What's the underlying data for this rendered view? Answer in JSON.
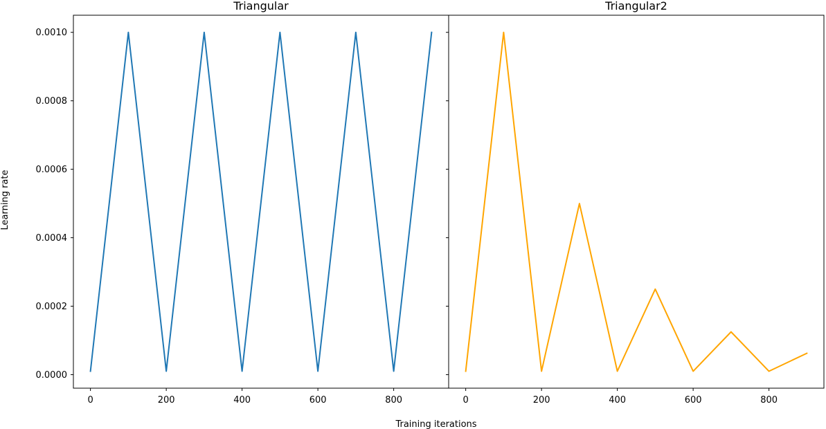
{
  "figure": {
    "xlabel": "Training iterations",
    "ylabel": "Learning rate"
  },
  "chart_data": [
    {
      "type": "line",
      "title": "Triangular",
      "x": [
        0,
        100,
        200,
        300,
        400,
        500,
        600,
        700,
        800,
        900
      ],
      "series": [
        {
          "color": "#1f77b4",
          "values": [
            1e-05,
            0.001,
            1e-05,
            0.001,
            1e-05,
            0.001,
            1e-05,
            0.001,
            1e-05,
            0.001
          ]
        }
      ],
      "xticks": [
        "0",
        "200",
        "400",
        "600",
        "800"
      ],
      "yticks": [
        "0.0000",
        "0.0002",
        "0.0004",
        "0.0006",
        "0.0008",
        "0.0010"
      ],
      "xlim": [
        -45,
        945
      ],
      "ylim": [
        -3.95e-05,
        0.00105
      ],
      "grid": false
    },
    {
      "type": "line",
      "title": "Triangular2",
      "x": [
        0,
        100,
        200,
        300,
        400,
        500,
        600,
        700,
        800,
        900
      ],
      "series": [
        {
          "color": "#ffa500",
          "values": [
            1e-05,
            0.001,
            1e-05,
            0.0005,
            1e-05,
            0.00025,
            1e-05,
            0.000125,
            1e-05,
            6.25e-05
          ]
        }
      ],
      "xticks": [
        "0",
        "200",
        "400",
        "600",
        "800"
      ],
      "yticks": [
        "0.0000",
        "0.0002",
        "0.0004",
        "0.0006",
        "0.0008",
        "0.0010"
      ],
      "xlim": [
        -45,
        945
      ],
      "ylim": [
        -3.95e-05,
        0.00105
      ],
      "grid": false,
      "shared_y": true
    }
  ]
}
